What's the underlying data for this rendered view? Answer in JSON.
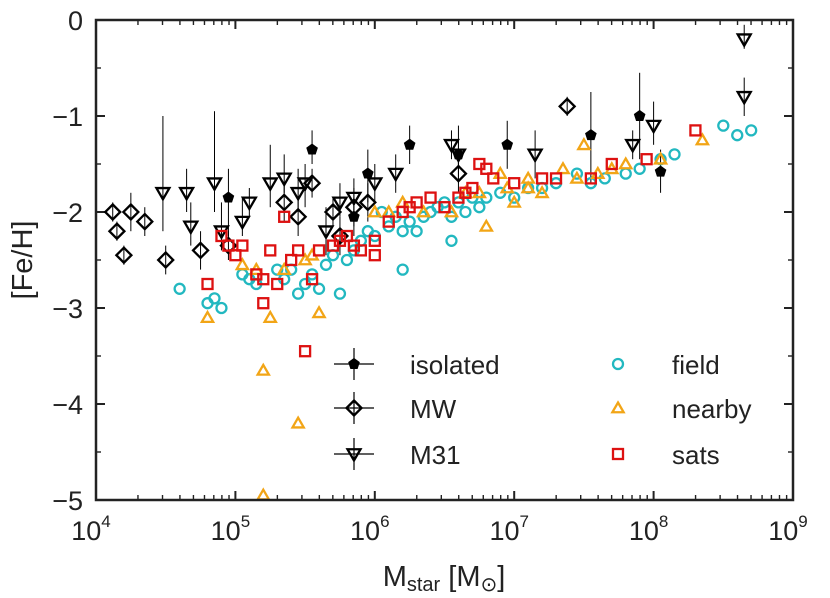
{
  "chart_data": {
    "type": "scatter",
    "title": "",
    "xlabel": {
      "main": "M",
      "sub": "star",
      "unit_open": " [M",
      "unit_symbol": "⊙",
      "unit_close": "]"
    },
    "ylabel": "[Fe/H]",
    "xscale": "log",
    "xlim": [
      10000,
      1000000000
    ],
    "ylim": [
      -5,
      0
    ],
    "x_ticks": [
      {
        "value": 10000,
        "base": "10",
        "exp": "4"
      },
      {
        "value": 100000,
        "base": "10",
        "exp": "5"
      },
      {
        "value": 1000000,
        "base": "10",
        "exp": "6"
      },
      {
        "value": 10000000,
        "base": "10",
        "exp": "7"
      },
      {
        "value": 100000000,
        "base": "10",
        "exp": "8"
      },
      {
        "value": 1000000000,
        "base": "10",
        "exp": "9"
      }
    ],
    "y_ticks": [
      {
        "value": 0,
        "label": "0"
      },
      {
        "value": -1,
        "label": "−1"
      },
      {
        "value": -2,
        "label": "−2"
      },
      {
        "value": -3,
        "label": "−3"
      },
      {
        "value": -4,
        "label": "−4"
      },
      {
        "value": -5,
        "label": "−5"
      }
    ],
    "legend_position": "lower-center",
    "series": [
      {
        "name": "isolated",
        "marker": "pentagon",
        "color": "#000000",
        "filled": true,
        "errorbars": true,
        "points": [
          [
            4.95,
            -1.85,
            -1.55,
            -2.25
          ],
          [
            5.55,
            -1.35,
            -1.15,
            -1.5
          ],
          [
            5.85,
            -2.05,
            -1.85,
            -2.25
          ],
          [
            5.95,
            -1.6,
            -1.35,
            -1.9
          ],
          [
            6.25,
            -1.3,
            -1.1,
            -1.5
          ],
          [
            6.6,
            -1.4,
            -1.1,
            -1.7
          ],
          [
            6.95,
            -1.3,
            -1.05,
            -1.55
          ],
          [
            7.55,
            -1.2,
            -0.75,
            -1.7
          ],
          [
            7.9,
            -1.0,
            -0.55,
            -1.45
          ],
          [
            8.05,
            -1.58,
            -1.35,
            -1.8
          ]
        ]
      },
      {
        "name": "MW",
        "marker": "diamond",
        "color": "#000000",
        "filled": false,
        "errorbars": true,
        "points": [
          [
            4.12,
            -2.0,
            -1.9,
            -2.1
          ],
          [
            4.15,
            -2.2,
            -2.1,
            -2.3
          ],
          [
            4.2,
            -2.45,
            -2.35,
            -2.55
          ],
          [
            4.25,
            -2.0,
            -1.8,
            -2.2
          ],
          [
            4.35,
            -2.1,
            -1.95,
            -2.25
          ],
          [
            4.5,
            -2.5,
            -2.35,
            -2.65
          ],
          [
            4.75,
            -2.4,
            -2.2,
            -2.6
          ],
          [
            4.95,
            -2.35,
            -2.2,
            -2.5
          ],
          [
            5.35,
            -1.9,
            -1.7,
            -2.1
          ],
          [
            5.45,
            -2.05,
            -1.85,
            -2.25
          ],
          [
            5.55,
            -1.7,
            -1.55,
            -1.85
          ],
          [
            5.7,
            -2.0,
            -1.85,
            -2.15
          ],
          [
            5.75,
            -2.25,
            -2.05,
            -2.45
          ],
          [
            5.85,
            -1.95,
            -1.75,
            -2.15
          ],
          [
            5.95,
            -1.9,
            -1.7,
            -2.1
          ],
          [
            6.6,
            -1.6,
            -1.4,
            -1.8
          ],
          [
            7.38,
            -0.9,
            -0.8,
            -1.0
          ]
        ]
      },
      {
        "name": "M31",
        "marker": "triangle-down",
        "color": "#000000",
        "filled": false,
        "errorbars": true,
        "points": [
          [
            4.48,
            -1.8,
            -1.0,
            -2.2
          ],
          [
            4.65,
            -1.8,
            -1.55,
            -2.0
          ],
          [
            4.68,
            -2.15,
            -1.9,
            -2.35
          ],
          [
            4.85,
            -1.7,
            -0.95,
            -2.0
          ],
          [
            4.9,
            -2.2,
            -1.9,
            -2.4
          ],
          [
            5.05,
            -2.1,
            -1.85,
            -2.25
          ],
          [
            5.1,
            -1.9,
            -1.75,
            -2.05
          ],
          [
            5.25,
            -1.7,
            -1.3,
            -1.95
          ],
          [
            5.35,
            -1.65,
            -1.4,
            -1.8
          ],
          [
            5.45,
            -1.8,
            -1.55,
            -2.0
          ],
          [
            5.5,
            -1.7,
            -1.5,
            -1.95
          ],
          [
            5.65,
            -2.2,
            -1.95,
            -2.45
          ],
          [
            5.75,
            -1.9,
            -1.7,
            -2.05
          ],
          [
            5.85,
            -1.85,
            -1.65,
            -2.0
          ],
          [
            6.0,
            -1.7,
            -1.5,
            -1.9
          ],
          [
            6.15,
            -1.6,
            -1.4,
            -1.8
          ],
          [
            6.55,
            -1.3,
            -1.15,
            -1.45
          ],
          [
            6.6,
            -1.4,
            -1.25,
            -1.55
          ],
          [
            7.15,
            -1.4,
            -1.15,
            -1.65
          ],
          [
            7.85,
            -1.3,
            -1.15,
            -1.45
          ],
          [
            8.0,
            -1.1,
            -0.85,
            -1.3
          ],
          [
            8.65,
            -0.8,
            -0.6,
            -1.0
          ],
          [
            8.65,
            -0.2,
            -0.05,
            -0.3
          ]
        ]
      },
      {
        "name": "field",
        "marker": "circle",
        "color": "#22b8c0",
        "filled": false,
        "errorbars": false,
        "points": [
          [
            4.6,
            -2.8
          ],
          [
            4.8,
            -2.95
          ],
          [
            4.85,
            -2.9
          ],
          [
            4.9,
            -3.0
          ],
          [
            5.05,
            -2.65
          ],
          [
            5.1,
            -2.7
          ],
          [
            5.15,
            -2.75
          ],
          [
            5.3,
            -2.6
          ],
          [
            5.35,
            -2.7
          ],
          [
            5.4,
            -2.6
          ],
          [
            5.45,
            -2.85
          ],
          [
            5.5,
            -2.75
          ],
          [
            5.55,
            -2.65
          ],
          [
            5.6,
            -2.8
          ],
          [
            5.65,
            -2.55
          ],
          [
            5.7,
            -2.45
          ],
          [
            5.75,
            -2.85
          ],
          [
            5.8,
            -2.5
          ],
          [
            5.85,
            -2.4
          ],
          [
            5.9,
            -2.3
          ],
          [
            5.95,
            -2.2
          ],
          [
            6.0,
            -2.25
          ],
          [
            6.05,
            -2.0
          ],
          [
            6.1,
            -2.15
          ],
          [
            6.15,
            -2.05
          ],
          [
            6.2,
            -2.2
          ],
          [
            6.25,
            -2.1
          ],
          [
            6.3,
            -2.2
          ],
          [
            6.35,
            -2.05
          ],
          [
            6.4,
            -2.0
          ],
          [
            6.45,
            -1.95
          ],
          [
            6.5,
            -1.9
          ],
          [
            6.55,
            -2.05
          ],
          [
            6.6,
            -1.9
          ],
          [
            6.65,
            -2.0
          ],
          [
            6.7,
            -1.85
          ],
          [
            6.75,
            -1.95
          ],
          [
            6.8,
            -1.85
          ],
          [
            6.9,
            -1.8
          ],
          [
            7.0,
            -1.85
          ],
          [
            7.1,
            -1.75
          ],
          [
            7.2,
            -1.75
          ],
          [
            7.3,
            -1.7
          ],
          [
            7.45,
            -1.6
          ],
          [
            7.55,
            -1.7
          ],
          [
            7.65,
            -1.65
          ],
          [
            7.8,
            -1.6
          ],
          [
            7.9,
            -1.55
          ],
          [
            8.05,
            -1.45
          ],
          [
            8.15,
            -1.4
          ],
          [
            8.5,
            -1.1
          ],
          [
            8.6,
            -1.2
          ],
          [
            8.7,
            -1.15
          ],
          [
            6.55,
            -2.3
          ],
          [
            6.2,
            -2.6
          ]
        ]
      },
      {
        "name": "nearby",
        "marker": "triangle-up",
        "color": "#f2a516",
        "filled": false,
        "errorbars": false,
        "points": [
          [
            4.8,
            -3.1
          ],
          [
            5.05,
            -2.55
          ],
          [
            5.15,
            -2.6
          ],
          [
            5.2,
            -4.95
          ],
          [
            5.2,
            -3.65
          ],
          [
            5.25,
            -3.1
          ],
          [
            5.35,
            -2.6
          ],
          [
            5.45,
            -4.2
          ],
          [
            5.5,
            -2.5
          ],
          [
            5.55,
            -2.45
          ],
          [
            5.6,
            -3.05
          ],
          [
            6.0,
            -2.0
          ],
          [
            6.1,
            -2.0
          ],
          [
            6.2,
            -1.9
          ],
          [
            6.35,
            -2.0
          ],
          [
            6.55,
            -2.0
          ],
          [
            6.65,
            -1.8
          ],
          [
            6.75,
            -1.8
          ],
          [
            6.8,
            -2.15
          ],
          [
            6.9,
            -1.6
          ],
          [
            7.0,
            -1.9
          ],
          [
            7.1,
            -1.75
          ],
          [
            7.2,
            -1.8
          ],
          [
            7.35,
            -1.55
          ],
          [
            7.45,
            -1.65
          ],
          [
            7.5,
            -1.3
          ],
          [
            7.6,
            -1.6
          ],
          [
            7.7,
            -1.55
          ],
          [
            7.8,
            -1.5
          ],
          [
            8.05,
            -1.45
          ],
          [
            8.35,
            -1.25
          ],
          [
            7.1,
            -1.65
          ],
          [
            6.95,
            -1.75
          ]
        ]
      },
      {
        "name": "sats",
        "marker": "square",
        "color": "#dd1111",
        "filled": false,
        "errorbars": false,
        "points": [
          [
            4.8,
            -2.75
          ],
          [
            4.9,
            -2.25
          ],
          [
            4.95,
            -2.35
          ],
          [
            5.0,
            -2.45
          ],
          [
            5.05,
            -2.35
          ],
          [
            5.15,
            -2.65
          ],
          [
            5.2,
            -2.7
          ],
          [
            5.2,
            -2.95
          ],
          [
            5.25,
            -2.4
          ],
          [
            5.3,
            -2.75
          ],
          [
            5.35,
            -2.05
          ],
          [
            5.4,
            -2.5
          ],
          [
            5.45,
            -2.4
          ],
          [
            5.5,
            -3.45
          ],
          [
            5.55,
            -2.7
          ],
          [
            5.6,
            -2.4
          ],
          [
            5.7,
            -2.35
          ],
          [
            5.75,
            -2.3
          ],
          [
            5.8,
            -2.25
          ],
          [
            5.85,
            -2.35
          ],
          [
            5.9,
            -2.4
          ],
          [
            6.0,
            -2.45
          ],
          [
            6.0,
            -2.3
          ],
          [
            6.1,
            -2.1
          ],
          [
            6.2,
            -2.0
          ],
          [
            6.25,
            -1.95
          ],
          [
            6.3,
            -1.9
          ],
          [
            6.4,
            -1.85
          ],
          [
            6.5,
            -1.95
          ],
          [
            6.6,
            -1.85
          ],
          [
            6.65,
            -1.8
          ],
          [
            6.7,
            -1.75
          ],
          [
            6.75,
            -1.5
          ],
          [
            6.8,
            -1.55
          ],
          [
            6.85,
            -1.65
          ],
          [
            7.0,
            -1.7
          ],
          [
            7.2,
            -1.65
          ],
          [
            7.3,
            -1.65
          ],
          [
            7.55,
            -1.65
          ],
          [
            7.7,
            -1.5
          ],
          [
            7.95,
            -1.45
          ],
          [
            8.3,
            -1.15
          ]
        ]
      }
    ]
  }
}
